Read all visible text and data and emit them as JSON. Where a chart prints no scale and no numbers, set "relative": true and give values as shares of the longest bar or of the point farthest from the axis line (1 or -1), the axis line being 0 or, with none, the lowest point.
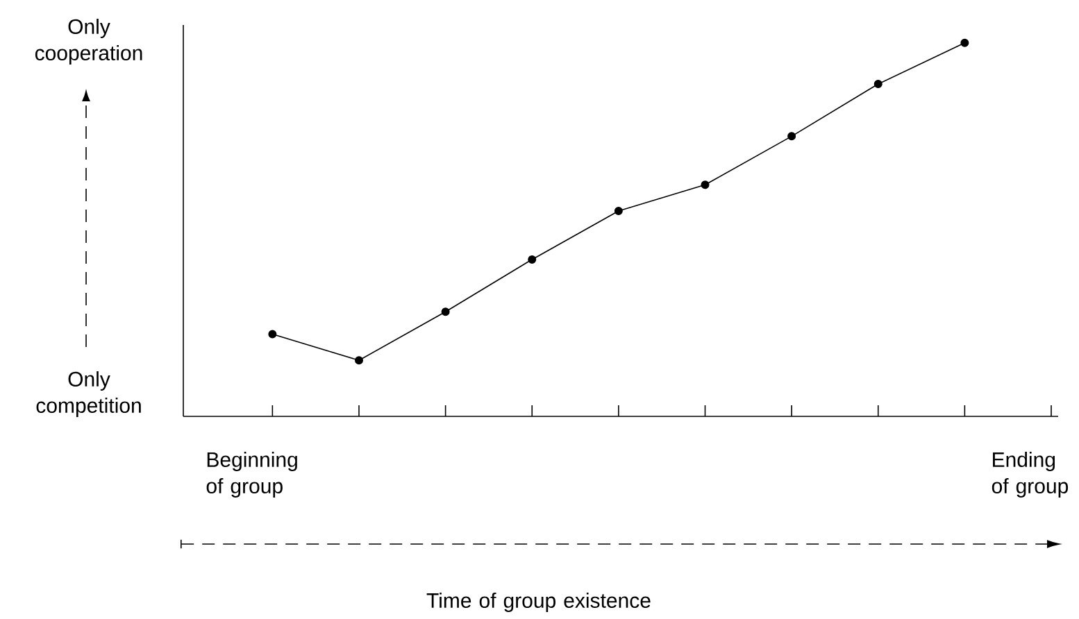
{
  "chart_data": {
    "type": "line",
    "relative": true,
    "categories": [
      null,
      null,
      null,
      null,
      null,
      null,
      null,
      null,
      null,
      null
    ],
    "series": [
      {
        "color": "#000000",
        "values": [
          0.22,
          0.15,
          0.28,
          0.42,
          0.55,
          0.62,
          0.75,
          0.89,
          1.0,
          null
        ]
      }
    ],
    "marker": "circle",
    "line_style": "solid",
    "grid": false,
    "annotations": [
      "Only cooperation",
      "Only competition",
      "Beginning of group",
      "Ending of group",
      "Time of group existence"
    ]
  }
}
